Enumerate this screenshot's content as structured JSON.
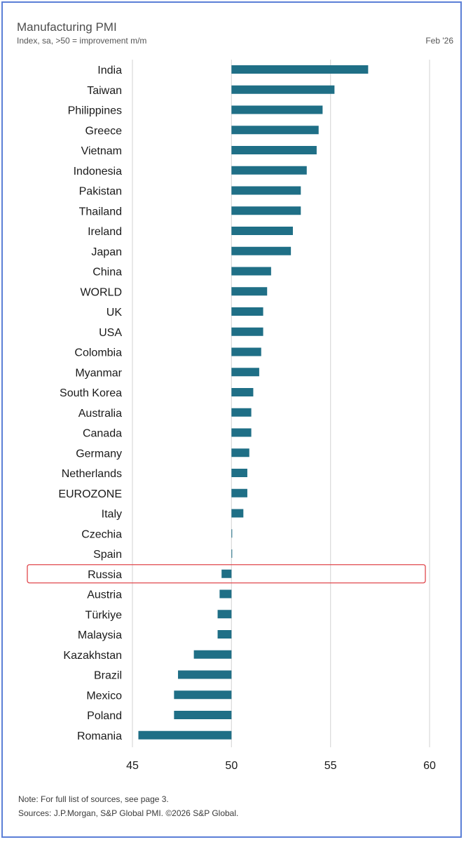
{
  "header": {
    "title": "Manufacturing PMI",
    "subtitle": "Index, sa, >50 = improvement m/m",
    "date": "Feb '26"
  },
  "footer": {
    "note": "Note: For full list of sources, see page 3.",
    "sources": "Sources: J.P.Morgan, S&P Global PMI. ©2026 S&P Global."
  },
  "colors": {
    "bar": "#1f6f86",
    "grid": "#d9d9d9",
    "highlight": "#e0474c",
    "text": "#1a1a1a"
  },
  "chart_data": {
    "type": "bar",
    "orientation": "horizontal",
    "baseline": 50,
    "xlim": [
      45,
      60
    ],
    "xticks": [
      45,
      50,
      55,
      60
    ],
    "grid": true,
    "highlight": "Russia",
    "categories": [
      "India",
      "Taiwan",
      "Philippines",
      "Greece",
      "Vietnam",
      "Indonesia",
      "Pakistan",
      "Thailand",
      "Ireland",
      "Japan",
      "China",
      "WORLD",
      "UK",
      "USA",
      "Colombia",
      "Myanmar",
      "South Korea",
      "Australia",
      "Canada",
      "Germany",
      "Netherlands",
      "EUROZONE",
      "Italy",
      "Czechia",
      "Spain",
      "Russia",
      "Austria",
      "Türkiye",
      "Malaysia",
      "Kazakhstan",
      "Brazil",
      "Mexico",
      "Poland",
      "Romania"
    ],
    "values": [
      56.9,
      55.2,
      54.6,
      54.4,
      54.3,
      53.8,
      53.5,
      53.5,
      53.1,
      53.0,
      52.0,
      51.8,
      51.6,
      51.6,
      51.5,
      51.4,
      51.1,
      51.0,
      51.0,
      50.9,
      50.8,
      50.8,
      50.6,
      50.0,
      50.0,
      49.5,
      49.4,
      49.3,
      49.3,
      48.1,
      47.3,
      47.1,
      47.1,
      45.3
    ]
  }
}
